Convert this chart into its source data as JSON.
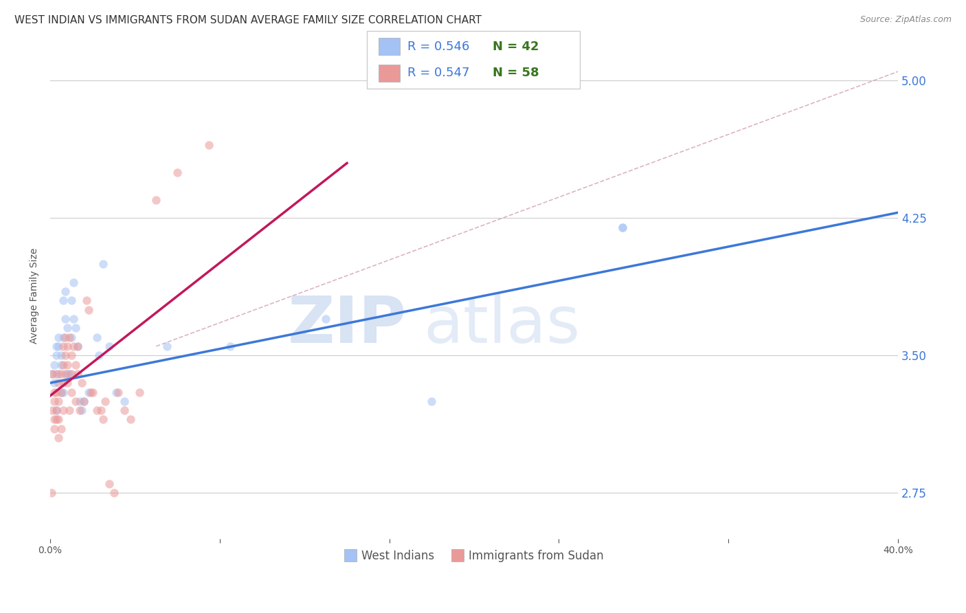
{
  "title": "WEST INDIAN VS IMMIGRANTS FROM SUDAN AVERAGE FAMILY SIZE CORRELATION CHART",
  "source": "Source: ZipAtlas.com",
  "ylabel": "Average Family Size",
  "yticks_right": [
    2.75,
    3.5,
    4.25,
    5.0
  ],
  "ytick_labels_right": [
    "2.75",
    "3.50",
    "4.25",
    "5.00"
  ],
  "watermark_zip": "ZIP",
  "watermark_atlas": "atlas",
  "legend_blue_r": "0.546",
  "legend_blue_n": "42",
  "legend_pink_r": "0.547",
  "legend_pink_n": "58",
  "legend_blue_label": "West Indians",
  "legend_pink_label": "Immigrants from Sudan",
  "blue_scatter_x": [
    0.001,
    0.002,
    0.002,
    0.003,
    0.003,
    0.003,
    0.004,
    0.004,
    0.004,
    0.005,
    0.005,
    0.005,
    0.006,
    0.006,
    0.006,
    0.007,
    0.007,
    0.008,
    0.008,
    0.009,
    0.01,
    0.01,
    0.011,
    0.011,
    0.012,
    0.013,
    0.014,
    0.015,
    0.016,
    0.018,
    0.022,
    0.023,
    0.025,
    0.028,
    0.031,
    0.035,
    0.055,
    0.085,
    0.13,
    0.18,
    0.27,
    0.27
  ],
  "blue_scatter_y": [
    3.4,
    3.35,
    3.45,
    3.2,
    3.5,
    3.55,
    3.4,
    3.55,
    3.6,
    3.45,
    3.5,
    3.3,
    3.8,
    3.6,
    3.3,
    3.85,
    3.7,
    3.4,
    3.65,
    3.4,
    3.8,
    3.6,
    3.9,
    3.7,
    3.65,
    3.55,
    3.25,
    3.2,
    3.25,
    3.3,
    3.6,
    3.5,
    4.0,
    3.55,
    3.3,
    3.25,
    3.55,
    3.55,
    3.7,
    3.25,
    4.2,
    4.2
  ],
  "pink_scatter_x": [
    0.0005,
    0.001,
    0.001,
    0.002,
    0.002,
    0.002,
    0.002,
    0.003,
    0.003,
    0.003,
    0.003,
    0.004,
    0.004,
    0.004,
    0.004,
    0.005,
    0.005,
    0.005,
    0.006,
    0.006,
    0.006,
    0.006,
    0.007,
    0.007,
    0.007,
    0.008,
    0.008,
    0.008,
    0.009,
    0.009,
    0.01,
    0.01,
    0.01,
    0.011,
    0.012,
    0.012,
    0.013,
    0.013,
    0.014,
    0.015,
    0.016,
    0.017,
    0.018,
    0.019,
    0.02,
    0.022,
    0.024,
    0.025,
    0.026,
    0.028,
    0.03,
    0.032,
    0.035,
    0.038,
    0.042,
    0.05,
    0.06,
    0.075
  ],
  "pink_scatter_y": [
    2.75,
    3.4,
    3.2,
    3.3,
    3.15,
    3.25,
    3.1,
    3.4,
    3.3,
    3.2,
    3.15,
    3.35,
    3.25,
    3.15,
    3.05,
    3.4,
    3.3,
    3.1,
    3.55,
    3.45,
    3.35,
    3.2,
    3.6,
    3.5,
    3.4,
    3.55,
    3.45,
    3.35,
    3.6,
    3.2,
    3.5,
    3.4,
    3.3,
    3.55,
    3.45,
    3.25,
    3.55,
    3.4,
    3.2,
    3.35,
    3.25,
    3.8,
    3.75,
    3.3,
    3.3,
    3.2,
    3.2,
    3.15,
    3.25,
    2.8,
    2.75,
    3.3,
    3.2,
    3.15,
    3.3,
    4.35,
    4.5,
    4.65
  ],
  "blue_line_x": [
    0.0,
    0.4
  ],
  "blue_line_y": [
    3.35,
    4.28
  ],
  "pink_line_x": [
    0.0,
    0.14
  ],
  "pink_line_y": [
    3.28,
    4.55
  ],
  "diag_line_x": [
    0.05,
    0.4
  ],
  "diag_line_y": [
    3.55,
    5.05
  ],
  "xlim": [
    0.0,
    0.4
  ],
  "ylim": [
    2.5,
    5.15
  ],
  "blue_color": "#a4c2f4",
  "pink_color": "#ea9999",
  "blue_line_color": "#3c78d8",
  "pink_line_color": "#c2185b",
  "diag_color": "#d5a6bd",
  "scatter_size": 80,
  "scatter_alpha": 0.55,
  "grid_color": "#cccccc",
  "background_color": "#ffffff",
  "title_fontsize": 11,
  "axis_label_fontsize": 10,
  "tick_fontsize": 10,
  "legend_fontsize": 13
}
